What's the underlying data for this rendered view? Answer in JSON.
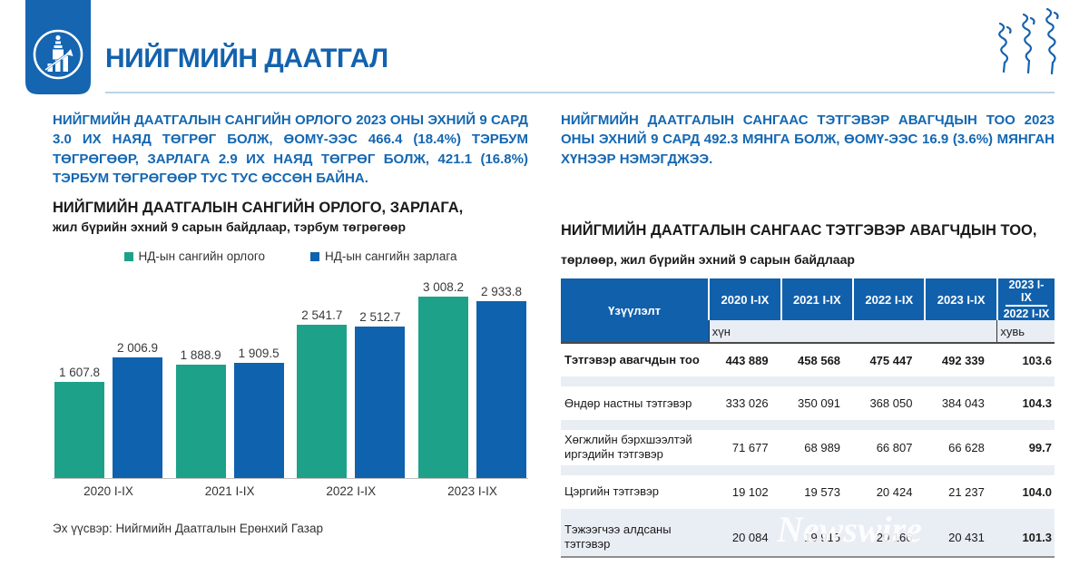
{
  "page": {
    "title": "НИЙГМИЙН ДААТГАЛ"
  },
  "colors": {
    "accent": "#1262AE",
    "banner": "#1565B0",
    "table_header": "#1160AC",
    "row_light": "#E9EDF4",
    "income_teal": "#1DA189",
    "expense_blue": "#0E62AE"
  },
  "left": {
    "paragraph": "НИЙГМИЙН ДААТГАЛЫН САНГИЙН ОРЛОГО 2023 ОНЫ ЭХНИЙ 9 САРД 3.0 ИХ НАЯД ТӨГРӨГ БОЛЖ, ӨОМҮ-ЭЭС 466.4 (18.4%) ТЭРБУМ ТӨГРӨГӨӨР, ЗАРЛАГА 2.9 ИХ НАЯД ТӨГРӨГ БОЛЖ, 421.1 (16.8%) ТЭРБУМ ТӨГРӨГӨӨР ТУС ТУС ӨССӨН БАЙНА.",
    "source": "Эх үүсвэр: Нийгмийн Даатгалын Ерөнхий Газар"
  },
  "right": {
    "paragraph": "НИЙГМИЙН ДААТГАЛЫН САНГААС ТЭТГЭВЭР АВАГЧДЫН ТОО 2023 ОНЫ ЭХНИЙ 9 САРД 492.3 МЯНГА БОЛЖ, ӨОМҮ-ЭЭС 16.9 (3.6%) МЯНГАН ХҮНЭЭР НЭМЭГДЖЭЭ.",
    "watermark": "Newswire"
  },
  "chart_data": [
    {
      "type": "bar",
      "title": "НИЙГМИЙН ДААТГАЛЫН САНГИЙН ОРЛОГО, ЗАРЛАГА,",
      "subtitle": "жил бүрийн эхний 9 сарын байдлаар, тэрбум төгрөгөөр",
      "categories": [
        "2020 I-IX",
        "2021 I-IX",
        "2022 I-IX",
        "2023 I-IX"
      ],
      "series": [
        {
          "name": "НД-ын сангийн орлого",
          "color": "#1DA189",
          "values": [
            1607.8,
            1888.9,
            2541.7,
            3008.2
          ],
          "labels": [
            "1 607.8",
            "1 888.9",
            "2 541.7",
            "3 008.2"
          ]
        },
        {
          "name": "НД-ын сангийн зарлага",
          "color": "#0E62AE",
          "values": [
            2006.9,
            1909.5,
            2512.7,
            2933.8
          ],
          "labels": [
            "2 006.9",
            "1 909.5",
            "2 512.7",
            "2 933.8"
          ]
        }
      ],
      "ylim": [
        0,
        3200
      ],
      "grid": false,
      "legend_position": "top",
      "value_labels": true
    },
    {
      "type": "table",
      "title_strong": "НИЙГМИЙН ДААТГАЛЫН САНГААС ТЭТГЭВЭР АВАГЧДЫН ТОО,",
      "title_rest": "төрлөөр, жил бүрийн эхний 9 сарын байдлаар",
      "header": {
        "label": "Үзүүлэлт",
        "years": [
          "2020 I-IX",
          "2021 I-IX",
          "2022 I-IX",
          "2023 I-IX"
        ],
        "ratio_numerator": "2023 I-IX",
        "ratio_denominator": "2022 I-IX",
        "unit_people": "хүн",
        "unit_percent": "хувь"
      },
      "rows": [
        {
          "label": "Тэтгэвэр авагчдын тоо",
          "display": [
            "443 889",
            "458 568",
            "475 447",
            "492 339"
          ],
          "values": [
            443889,
            458568,
            475447,
            492339
          ],
          "ratio": "103.6",
          "bold": true
        },
        {
          "label": "Өндөр настны тэтгэвэр",
          "display": [
            "333 026",
            "350 091",
            "368 050",
            "384 043"
          ],
          "values": [
            333026,
            350091,
            368050,
            384043
          ],
          "ratio": "104.3",
          "bold": false
        },
        {
          "label": "Хөгжлийн бэрхшээлтэй иргэдийн тэтгэвэр",
          "display": [
            "71 677",
            "68 989",
            "66 807",
            "66 628"
          ],
          "values": [
            71677,
            68989,
            66807,
            66628
          ],
          "ratio": "99.7",
          "bold": false
        },
        {
          "label": "Цэргийн тэтгэвэр",
          "display": [
            "19 102",
            "19 573",
            "20 424",
            "21 237"
          ],
          "values": [
            19102,
            19573,
            20424,
            21237
          ],
          "ratio": "104.0",
          "bold": false
        },
        {
          "label": "Тэжээгчээ алдсаны тэтгэвэр",
          "display": [
            "20 084",
            "19 915",
            "20 166",
            "20 431"
          ],
          "values": [
            20084,
            19915,
            20166,
            20431
          ],
          "ratio": "101.3",
          "bold": false
        }
      ]
    }
  ]
}
